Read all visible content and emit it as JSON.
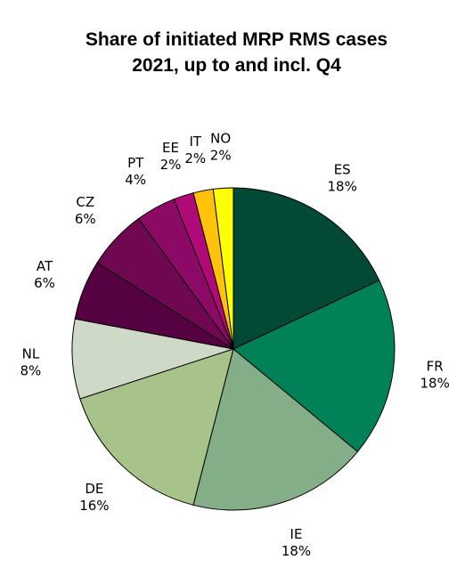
{
  "chart_data": {
    "type": "pie",
    "title": "Share of initiated MRP RMS cases 2021, up to and incl. Q4",
    "title_lines": [
      "Share of initiated MRP RMS cases",
      "2021, up to and incl. Q4"
    ],
    "slices": [
      {
        "label": "ES",
        "value": 18,
        "value_label": "18%",
        "color": "#034a36"
      },
      {
        "label": "FR",
        "value": 18,
        "value_label": "18%",
        "color": "#008157"
      },
      {
        "label": "IE",
        "value": 18,
        "value_label": "18%",
        "color": "#83ae87"
      },
      {
        "label": "DE",
        "value": 16,
        "value_label": "16%",
        "color": "#a8c38a"
      },
      {
        "label": "NL",
        "value": 8,
        "value_label": "8%",
        "color": "#cfd9c8"
      },
      {
        "label": "AT",
        "value": 6,
        "value_label": "6%",
        "color": "#560142"
      },
      {
        "label": "CZ",
        "value": 6,
        "value_label": "6%",
        "color": "#6f0850"
      },
      {
        "label": "PT",
        "value": 4,
        "value_label": "4%",
        "color": "#8c0a65"
      },
      {
        "label": "EE",
        "value": 2,
        "value_label": "2%",
        "color": "#b00a78"
      },
      {
        "label": "IT",
        "value": 2,
        "value_label": "2%",
        "color": "#ffc20a"
      },
      {
        "label": "NO",
        "value": 2,
        "value_label": "2%",
        "color": "#ffff00"
      }
    ],
    "start": "12 o'clock",
    "direction": "clockwise",
    "legend": "none"
  }
}
